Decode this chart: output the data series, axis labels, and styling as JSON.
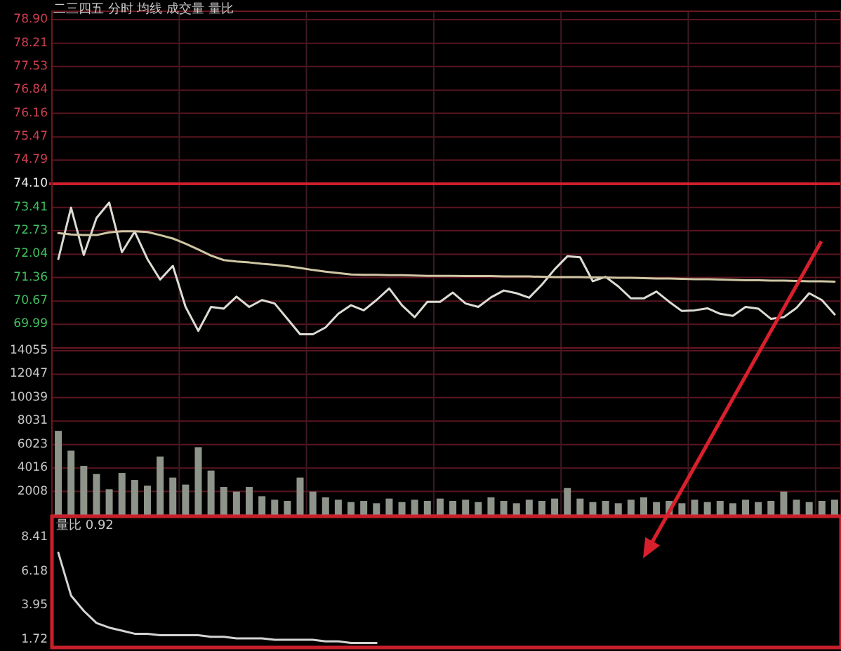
{
  "chart_data": [
    {
      "type": "line",
      "title": "二三四五  分时 均线 成交量 量比",
      "categories": [
        null,
        null,
        null,
        null,
        null,
        null,
        null,
        null,
        null,
        null,
        null,
        null,
        null,
        null,
        null,
        null,
        null,
        null,
        null,
        null,
        null,
        null,
        null,
        null,
        null,
        null,
        null,
        null,
        null,
        null,
        null,
        null,
        null,
        null,
        null,
        null,
        null,
        null,
        null,
        null,
        null,
        null,
        null,
        null,
        null,
        null,
        null,
        null,
        null,
        null,
        null,
        null,
        null,
        null,
        null,
        null,
        null,
        null,
        null,
        null,
        null,
        null
      ],
      "ylim": [
        69.3,
        78.9
      ],
      "yticks": [
        {
          "value": 78.9,
          "label": "78.90"
        },
        78.21,
        77.53,
        76.84,
        76.16,
        75.47,
        74.79,
        {
          "value": 74.1,
          "label": "74.10"
        },
        73.41,
        72.73,
        72.04,
        71.36,
        70.67,
        69.99
      ],
      "grid": true,
      "tick_labels": "y",
      "ref_lines": [
        {
          "axis": "y",
          "value": 74.1,
          "color": "#d0202c"
        }
      ],
      "series": [
        {
          "color": "#dcdcd4",
          "values": [
            71.9,
            73.4,
            72.02,
            73.1,
            73.55,
            72.1,
            72.7,
            71.9,
            71.3,
            71.7,
            70.5,
            69.8,
            70.5,
            70.45,
            70.8,
            70.5,
            70.7,
            70.6,
            70.15,
            69.7,
            69.7,
            69.9,
            70.3,
            70.55,
            70.4,
            70.7,
            71.04,
            70.55,
            70.2,
            70.65,
            70.65,
            70.92,
            70.6,
            70.5,
            70.78,
            70.98,
            70.9,
            70.77,
            71.15,
            71.6,
            71.98,
            71.95,
            71.25,
            71.38,
            71.1,
            70.75,
            70.75,
            70.95,
            70.65,
            70.38,
            70.4,
            70.46,
            70.3,
            70.24,
            70.5,
            70.45,
            70.15,
            70.2,
            70.47,
            70.9,
            70.7,
            70.28
          ]
        },
        {
          "color": "#cfc6a4",
          "values": [
            72.66,
            72.62,
            72.6,
            72.6,
            72.68,
            72.71,
            72.71,
            72.69,
            72.6,
            72.5,
            72.35,
            72.18,
            72.0,
            71.87,
            71.83,
            71.8,
            71.76,
            71.73,
            71.69,
            71.64,
            71.58,
            71.53,
            71.49,
            71.45,
            71.44,
            71.44,
            71.43,
            71.43,
            71.42,
            71.41,
            71.41,
            71.41,
            71.4,
            71.4,
            71.4,
            71.39,
            71.39,
            71.39,
            71.38,
            71.37,
            71.37,
            71.37,
            71.36,
            71.36,
            71.35,
            71.35,
            71.34,
            71.33,
            71.33,
            71.32,
            71.31,
            71.31,
            71.3,
            71.29,
            71.28,
            71.28,
            71.27,
            71.27,
            71.26,
            71.25,
            71.25,
            71.24
          ]
        }
      ]
    },
    {
      "type": "bar",
      "color": "#8e948a",
      "categories": [
        null,
        null,
        null,
        null,
        null,
        null,
        null,
        null,
        null,
        null,
        null,
        null,
        null,
        null,
        null,
        null,
        null,
        null,
        null,
        null,
        null,
        null,
        null,
        null,
        null,
        null,
        null,
        null,
        null,
        null,
        null,
        null,
        null,
        null,
        null,
        null,
        null,
        null,
        null,
        null,
        null,
        null,
        null,
        null,
        null,
        null,
        null,
        null,
        null,
        null,
        null,
        null,
        null,
        null,
        null,
        null,
        null,
        null,
        null,
        null,
        null,
        null
      ],
      "ylim": [
        0,
        14055
      ],
      "yticks": [
        14055,
        12047,
        10039,
        8031,
        6023,
        4016,
        2008
      ],
      "grid": true,
      "tick_labels": "y",
      "values": [
        7200,
        5500,
        4200,
        3500,
        2200,
        3600,
        3000,
        2500,
        5000,
        3200,
        2600,
        5800,
        3800,
        2400,
        2000,
        2400,
        1600,
        1300,
        1200,
        3200,
        2000,
        1500,
        1300,
        1100,
        1200,
        1000,
        1400,
        1100,
        1300,
        1200,
        1400,
        1200,
        1300,
        1100,
        1500,
        1200,
        1000,
        1300,
        1200,
        1400,
        2300,
        1400,
        1100,
        1200,
        1000,
        1300,
        1500,
        1100,
        1200,
        1000,
        1300,
        1100,
        1200,
        1000,
        1300,
        1100,
        1200,
        2000,
        1300,
        1100,
        1200,
        1300
      ]
    },
    {
      "type": "line",
      "title": "量比 0.92",
      "color": "#d4d4d4",
      "categories": [
        null,
        null,
        null,
        null,
        null,
        null,
        null,
        null,
        null,
        null,
        null,
        null,
        null,
        null,
        null,
        null,
        null,
        null,
        null,
        null,
        null,
        null,
        null,
        null,
        null,
        null,
        null,
        null,
        null,
        null,
        null,
        null,
        null,
        null,
        null,
        null,
        null,
        null,
        null,
        null,
        null,
        null,
        null,
        null,
        null,
        null,
        null,
        null,
        null,
        null,
        null,
        null,
        null,
        null,
        null,
        null,
        null,
        null,
        null,
        null,
        null,
        null
      ],
      "ylim": [
        1.2,
        9.6
      ],
      "yticks": [
        8.41,
        6.18,
        3.95,
        1.72
      ],
      "tick_labels": "y",
      "values": [
        7.4,
        4.6,
        3.6,
        2.8,
        2.5,
        2.3,
        2.1,
        2.1,
        2.0,
        2.0,
        2.0,
        2.0,
        1.9,
        1.9,
        1.8,
        1.8,
        1.8,
        1.7,
        1.7,
        1.7,
        1.7,
        1.6,
        1.6,
        1.5,
        1.5,
        1.5,
        null,
        null,
        null,
        null,
        null,
        null,
        null,
        null,
        null,
        null,
        null,
        null,
        null,
        null,
        null,
        null,
        null,
        null,
        null,
        null,
        null,
        null,
        null,
        null,
        null,
        null,
        null,
        null,
        null,
        null,
        null,
        null,
        null,
        null,
        null,
        null
      ]
    }
  ]
}
